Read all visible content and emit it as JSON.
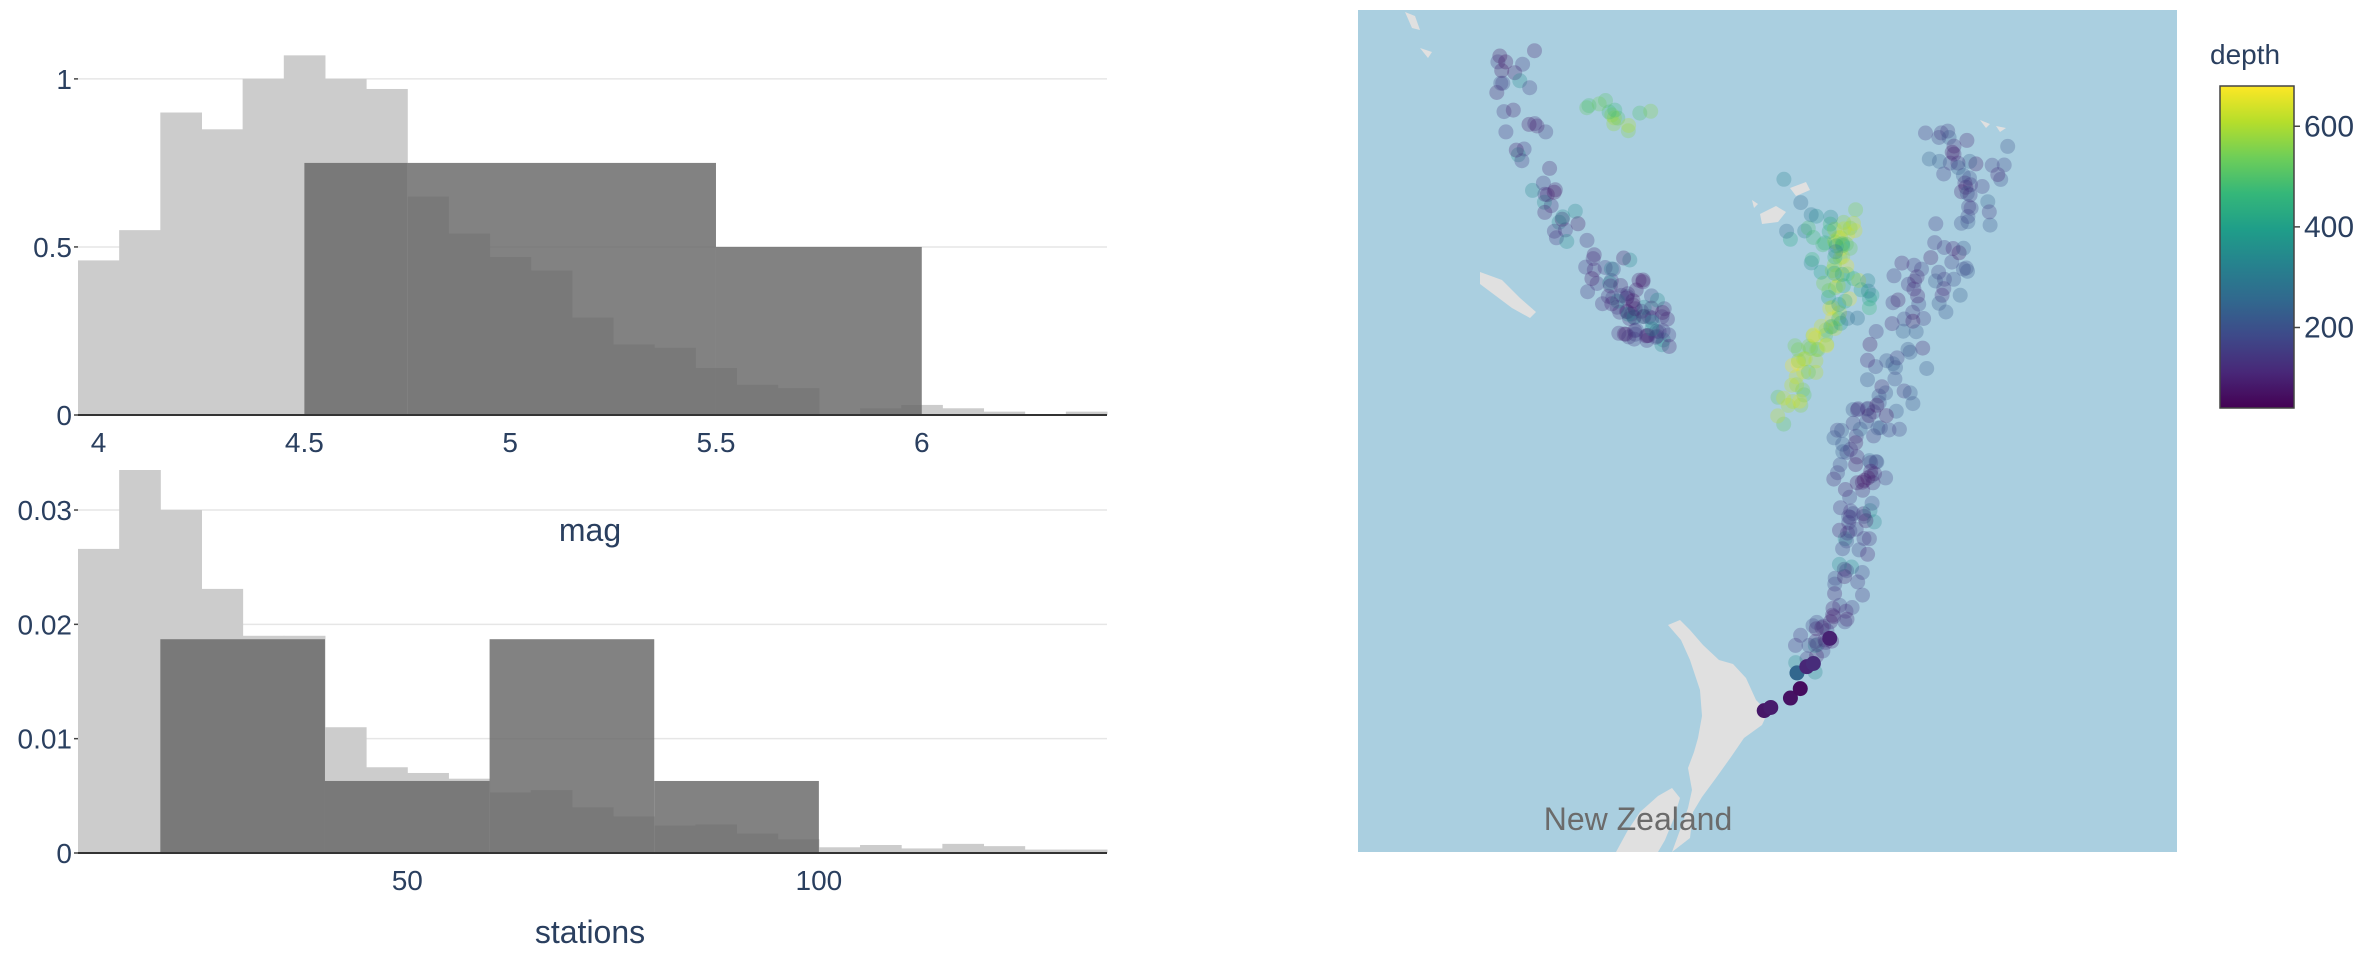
{
  "colors": {
    "bg_histogram": "#cccccc",
    "fg_histogram": "#666666",
    "ocean": "#aacfe0",
    "land": "#e0e0e0",
    "grid": "#e6e6e6",
    "axis_text": "#2a3f5f",
    "colorscale": [
      "#440154",
      "#482878",
      "#3e4989",
      "#31688e",
      "#26828e",
      "#1f9e89",
      "#35b779",
      "#6ece58",
      "#b5de2b",
      "#fde725"
    ]
  },
  "chart_data": [
    {
      "type": "bar",
      "subtype": "histogram-overlay",
      "xlabel": "mag",
      "xlim": [
        3.95,
        6.45
      ],
      "ylim": [
        0,
        1.08
      ],
      "x_ticks": [
        4,
        4.5,
        5,
        5.5,
        6
      ],
      "y_ticks": [
        0,
        0.5,
        1
      ],
      "grid": true,
      "series": [
        {
          "role": "all-data",
          "bins": [
            [
              3.95,
              4.05,
              0.46
            ],
            [
              4.05,
              4.15,
              0.55
            ],
            [
              4.15,
              4.25,
              0.9
            ],
            [
              4.25,
              4.35,
              0.85
            ],
            [
              4.35,
              4.45,
              1.0
            ],
            [
              4.45,
              4.55,
              1.07
            ],
            [
              4.55,
              4.65,
              1.0
            ],
            [
              4.65,
              4.75,
              0.97
            ],
            [
              4.75,
              4.85,
              0.65
            ],
            [
              4.85,
              4.95,
              0.54
            ],
            [
              4.95,
              5.05,
              0.47
            ],
            [
              5.05,
              5.15,
              0.43
            ],
            [
              5.15,
              5.25,
              0.29
            ],
            [
              5.25,
              5.35,
              0.21
            ],
            [
              5.35,
              5.45,
              0.2
            ],
            [
              5.45,
              5.55,
              0.14
            ],
            [
              5.55,
              5.65,
              0.09
            ],
            [
              5.65,
              5.75,
              0.08
            ],
            [
              5.75,
              5.85,
              0.0
            ],
            [
              5.85,
              5.95,
              0.02
            ],
            [
              5.95,
              6.05,
              0.03
            ],
            [
              6.05,
              6.15,
              0.02
            ],
            [
              6.15,
              6.25,
              0.01
            ],
            [
              6.25,
              6.35,
              0.0
            ],
            [
              6.35,
              6.45,
              0.01
            ]
          ]
        },
        {
          "role": "selection",
          "bins": [
            [
              4.5,
              4.75,
              0.75
            ],
            [
              4.75,
              5.5,
              0.75
            ],
            [
              5.5,
              6.0,
              0.5
            ]
          ]
        }
      ]
    },
    {
      "type": "bar",
      "subtype": "histogram-overlay",
      "xlabel": "stations",
      "xlim": [
        10,
        135
      ],
      "ylim": [
        0,
        0.0335
      ],
      "x_ticks": [
        50,
        100
      ],
      "y_ticks": [
        0,
        0.01,
        0.02,
        0.03
      ],
      "y_tick_labels": [
        "0",
        "0.01",
        "0.02",
        "0.03"
      ],
      "grid": true,
      "series": [
        {
          "role": "all-data",
          "bins": [
            [
              10,
              15,
              0.0266
            ],
            [
              15,
              20,
              0.0335
            ],
            [
              20,
              25,
              0.03
            ],
            [
              25,
              30,
              0.0231
            ],
            [
              30,
              35,
              0.019
            ],
            [
              35,
              40,
              0.019
            ],
            [
              40,
              45,
              0.011
            ],
            [
              45,
              50,
              0.0075
            ],
            [
              50,
              55,
              0.007
            ],
            [
              55,
              60,
              0.0065
            ],
            [
              60,
              65,
              0.0053
            ],
            [
              65,
              70,
              0.0055
            ],
            [
              70,
              75,
              0.004
            ],
            [
              75,
              80,
              0.0032
            ],
            [
              80,
              85,
              0.0024
            ],
            [
              85,
              90,
              0.0025
            ],
            [
              90,
              95,
              0.0017
            ],
            [
              95,
              100,
              0.0012
            ],
            [
              100,
              105,
              0.0005
            ],
            [
              105,
              110,
              0.0007
            ],
            [
              110,
              115,
              0.0004
            ],
            [
              115,
              120,
              0.0008
            ],
            [
              120,
              125,
              0.0006
            ],
            [
              125,
              130,
              0.0003
            ],
            [
              130,
              135,
              0.0003
            ]
          ]
        },
        {
          "role": "selection",
          "bins": [
            [
              20,
              40,
              0.0187
            ],
            [
              40,
              60,
              0.0063
            ],
            [
              60,
              80,
              0.0187
            ],
            [
              80,
              100,
              0.0063
            ]
          ]
        }
      ]
    },
    {
      "type": "scatter",
      "subtype": "geo-scatter",
      "label": "New Zealand",
      "lon_range": [
        164.0,
        189.0
      ],
      "lat_range": [
        -40.8,
        -14.0
      ],
      "colorbar": {
        "title": "depth",
        "range": [
          40,
          680
        ],
        "ticks": [
          200,
          400,
          600
        ]
      },
      "selected_points": [
        {
          "lon": 176.4,
          "lat": -36.3,
          "depth": 80
        },
        {
          "lon": 176.6,
          "lat": -36.2,
          "depth": 90
        },
        {
          "lon": 177.2,
          "lat": -35.9,
          "depth": 70
        },
        {
          "lon": 177.5,
          "lat": -35.6,
          "depth": 60
        },
        {
          "lon": 177.4,
          "lat": -35.1,
          "depth": 250
        },
        {
          "lon": 177.7,
          "lat": -34.9,
          "depth": 110
        },
        {
          "lon": 177.9,
          "lat": -34.8,
          "depth": 120
        },
        {
          "lon": 178.4,
          "lat": -34.0,
          "depth": 100
        }
      ]
    }
  ]
}
